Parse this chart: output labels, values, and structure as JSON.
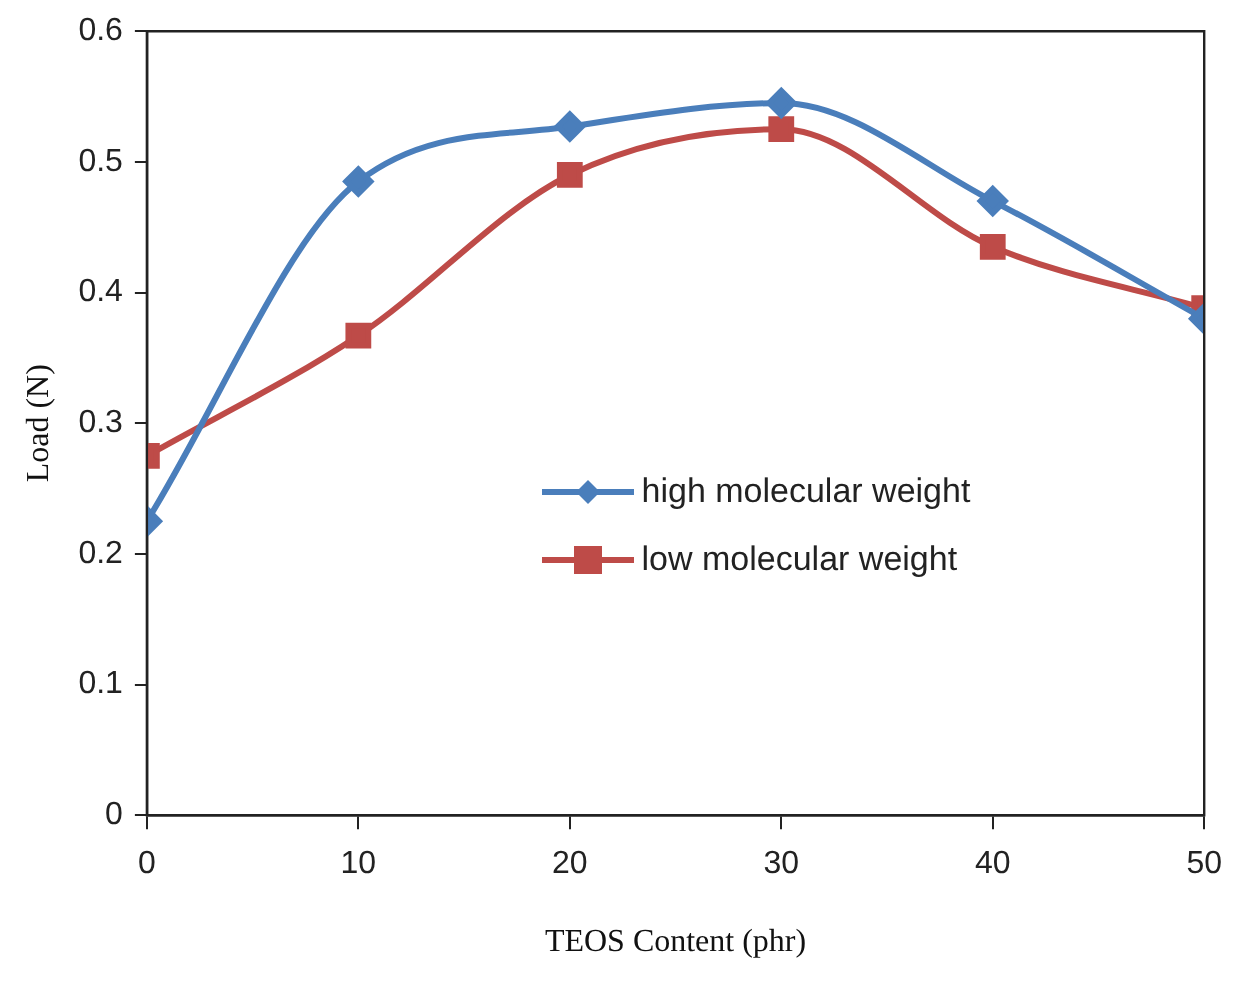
{
  "chart_data": {
    "type": "line",
    "xlabel": "TEOS Content (phr)",
    "ylabel": "Load (N)",
    "x": [
      0,
      10,
      20,
      30,
      40,
      50
    ],
    "series": [
      {
        "name": "high molecular weight",
        "color": "#4a7ebb",
        "marker": "diamond",
        "values": [
          0.225,
          0.485,
          0.527,
          0.545,
          0.47,
          0.38
        ]
      },
      {
        "name": "low molecular weight",
        "color": "#be4b48",
        "marker": "square",
        "values": [
          0.275,
          0.367,
          0.49,
          0.525,
          0.435,
          0.388
        ]
      }
    ],
    "xlim": [
      0,
      50
    ],
    "xticks": [
      0,
      10,
      20,
      30,
      40,
      50
    ],
    "ylim": [
      0,
      0.6
    ],
    "yticks": [
      0,
      0.1,
      0.2,
      0.3,
      0.4,
      0.5,
      0.6
    ],
    "grid": false,
    "legend": "center"
  }
}
